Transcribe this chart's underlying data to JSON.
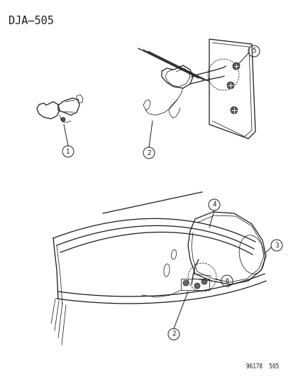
{
  "title": "DJA–505",
  "footer": "96178  505",
  "bg_color": "#ffffff",
  "line_color": "#1a1a1a",
  "title_fontsize": 11,
  "footer_fontsize": 5.5,
  "callout_fontsize": 6.5,
  "lw_main": 0.9,
  "lw_thin": 0.55,
  "lw_thick": 1.2
}
